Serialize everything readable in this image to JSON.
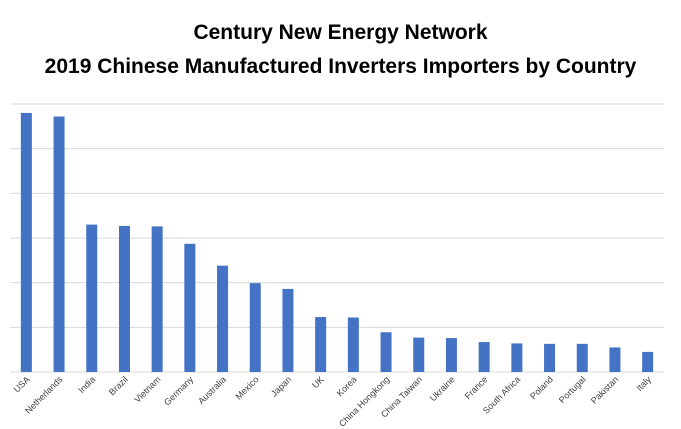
{
  "chart_data": {
    "type": "bar",
    "title": "Century New Energy Network",
    "subtitle": "2019 Chinese Manufactured Inverters Importers by Country",
    "categories": [
      "USA",
      "Netherlands",
      "India",
      "Brazil",
      "Vietnam",
      "Germany",
      "Australia",
      "Mexico",
      "Japan",
      "UK",
      "Korea",
      "China Hongkong",
      "China Taiwan",
      "Ukraine",
      "France",
      "South Africa",
      "Poland",
      "Portugal",
      "Pakistan",
      "Italy"
    ],
    "values": [
      5.8,
      5.72,
      3.3,
      3.27,
      3.26,
      2.87,
      2.38,
      1.99,
      1.86,
      1.23,
      1.22,
      0.89,
      0.77,
      0.76,
      0.67,
      0.64,
      0.63,
      0.63,
      0.55,
      0.45
    ],
    "ylim": [
      0,
      6
    ],
    "y_ticks": [
      0,
      1,
      2,
      3,
      4,
      5,
      6
    ],
    "show_y_tick_labels": false,
    "grid": true,
    "legend": "none",
    "bar_color": "#4472c4",
    "grid_color": "#d9d9d9",
    "xlabel": "",
    "ylabel": ""
  }
}
